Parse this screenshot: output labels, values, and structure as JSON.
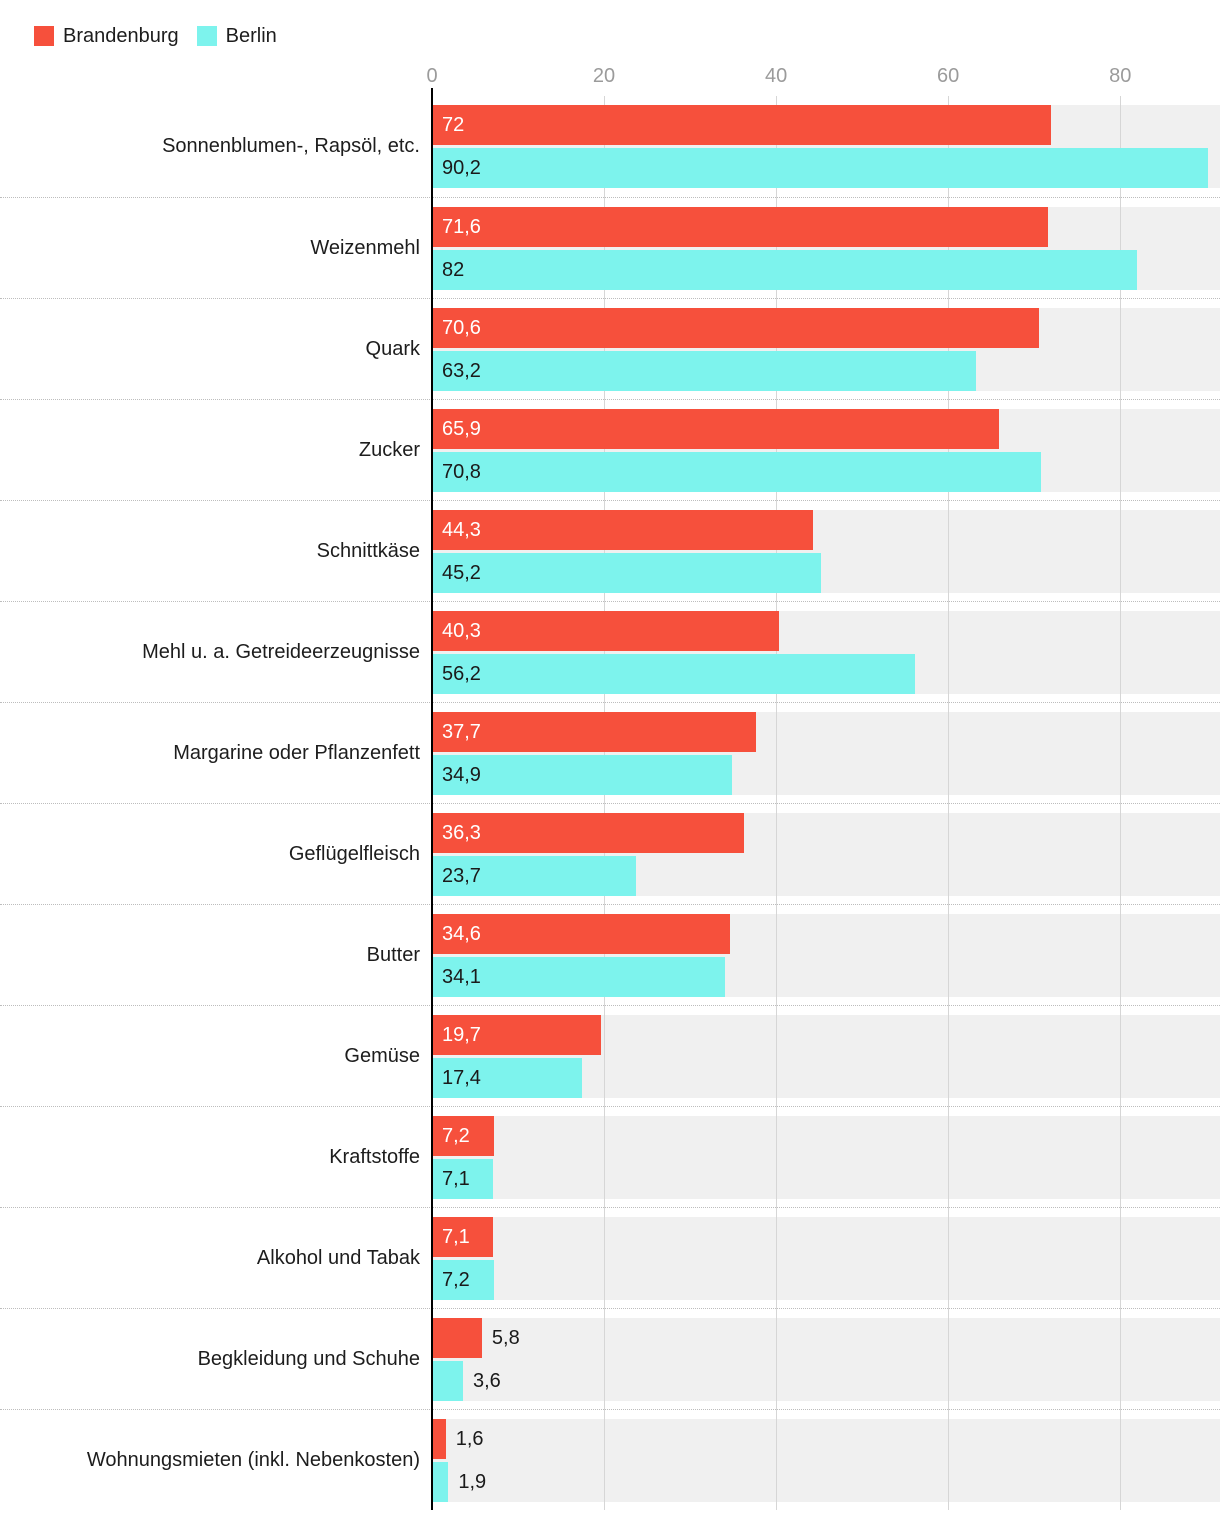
{
  "chart_data": {
    "type": "bar",
    "orientation": "horizontal",
    "title": "",
    "xlabel": "",
    "ylabel": "",
    "xlim": [
      0,
      91.6
    ],
    "x_ticks": [
      0,
      20,
      40,
      60,
      80
    ],
    "grid": true,
    "legend_position": "top-left",
    "categories": [
      "Sonnenblumen-, Rapsöl, etc.",
      "Weizenmehl",
      "Quark",
      "Zucker",
      "Schnittkäse",
      "Mehl u. a. Getreideerzeugnisse",
      "Margarine oder Pflanzenfett",
      "Geflügelfleisch",
      "Butter",
      "Gemüse",
      "Kraftstoffe",
      "Alkohol und Tabak",
      "Begkleidung und Schuhe",
      "Wohnungsmieten (inkl. Nebenkosten)"
    ],
    "series": [
      {
        "name": "Brandenburg",
        "color": "#f6503c",
        "label_color_inside": "#ffffff",
        "values": [
          72,
          71.6,
          70.6,
          65.9,
          44.3,
          40.3,
          37.7,
          36.3,
          34.6,
          19.7,
          7.2,
          7.1,
          5.8,
          1.6
        ],
        "labels": [
          "72",
          "71,6",
          "70,6",
          "65,9",
          "44,3",
          "40,3",
          "37,7",
          "36,3",
          "34,6",
          "19,7",
          "7,2",
          "7,1",
          "5,8",
          "1,6"
        ]
      },
      {
        "name": "Berlin",
        "color": "#7df3ed",
        "label_color_inside": "#1a1a1a",
        "values": [
          90.2,
          82,
          63.2,
          70.8,
          45.2,
          56.2,
          34.9,
          23.7,
          34.1,
          17.4,
          7.1,
          7.2,
          3.6,
          1.9
        ],
        "labels": [
          "90,2",
          "82",
          "63,2",
          "70,8",
          "45,2",
          "56,2",
          "34,9",
          "23,7",
          "34,1",
          "17,4",
          "7,1",
          "7,2",
          "3,6",
          "1,9"
        ]
      }
    ],
    "colors": {
      "band_background": "#f0f0f0",
      "gridline": "#d6d6d6",
      "axis_line": "#000000",
      "tick_label": "#9b9b9b",
      "category_label": "#1d1d1d",
      "outside_value_label": "#1a1a1a"
    }
  }
}
